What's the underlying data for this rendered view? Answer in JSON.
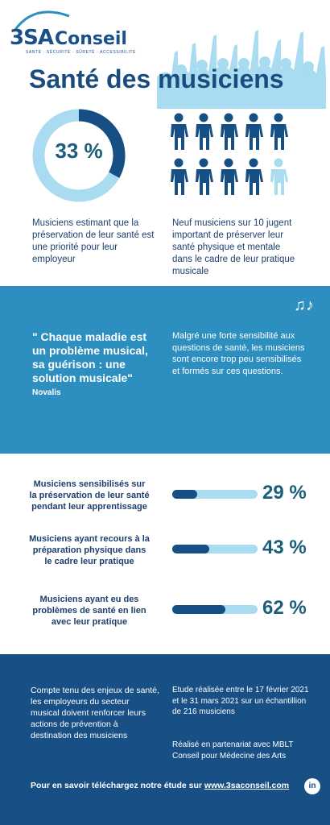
{
  "header": {
    "logo_main": "3SA",
    "logo_secondary": "Conseil",
    "logo_tagline": "SANTÉ · SÉCURITÉ · SÛRETÉ · ACCESSIBILITÉ",
    "title": "Santé des musiciens"
  },
  "stats_top": {
    "donut_value": 33,
    "donut_label": "33 %",
    "donut_color": "#154f84",
    "donut_track_color": "#a9dbf1",
    "donut_text": "Musiciens estimant que la préservation de leur santé est une priorité pour leur employeur",
    "people_total": 10,
    "people_highlighted": 9,
    "people_icon": "person-icon",
    "people_text": "Neuf musiciens sur 10 jugent important de préserver leur santé physique et mentale dans le cadre de leur pratique musicale"
  },
  "quote": {
    "icon": "music-notes-icon",
    "text": "\" Chaque maladie est un problème musical, sa guérison : une solution musicale\"",
    "author": "Novalis",
    "side_text": "Malgré une forte sensibilité aux questions de santé, les musiciens sont encore trop peu sensibilisés et formés sur ces questions."
  },
  "stats_bars": [
    {
      "label": "Musiciens sensibilisés sur la préservation de leur santé pendant leur apprentissage",
      "value": 29,
      "value_label": "29 %"
    },
    {
      "label": "Musiciens ayant recours à la préparation physique dans le cadre leur pratique",
      "value": 43,
      "value_label": "43 %"
    },
    {
      "label": "Musiciens ayant eu des problèmes de santé en lien avec leur pratique",
      "value": 62,
      "value_label": "62 %"
    }
  ],
  "footer": {
    "left_text": "Compte tenu des enjeux de santé, les employeurs du secteur musical doivent renforcer leurs actions de prévention à destination des musiciens",
    "study_text": "Etude réalisée entre le 17 février 2021 et le 31 mars 2021 sur un échantillion de 216 musiciens",
    "partner_text": "Réalisé en partenariat avec MBLT Conseil pour Médecine des Arts",
    "download_prefix": "Pour en savoir téléchargez notre étude sur ",
    "download_link": "www.3saconseil.com",
    "social_icon": "linkedin-icon",
    "social_label": "in"
  },
  "colors": {
    "dark_blue": "#154f84",
    "light_blue": "#a9dbf1",
    "band_blue": "#2d8fbf",
    "footer_blue": "#184f85"
  }
}
